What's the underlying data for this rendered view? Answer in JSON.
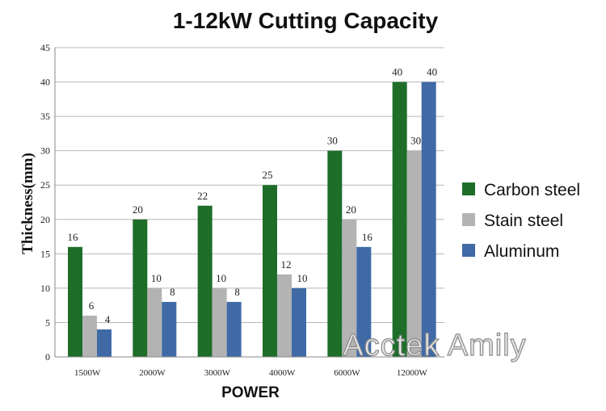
{
  "chart_data": {
    "type": "bar",
    "title": "1-12kW Cutting Capacity",
    "xlabel": "POWER",
    "ylabel": "Thickness(mm)",
    "categories": [
      "1500W",
      "2000W",
      "3000W",
      "4000W",
      "6000W",
      "12000W"
    ],
    "series": [
      {
        "name": "Carbon steel",
        "color": "#1e6e2a",
        "values": [
          16,
          20,
          22,
          25,
          30,
          40
        ]
      },
      {
        "name": "Stain steel",
        "color": "#b3b3b3",
        "values": [
          6,
          10,
          10,
          12,
          20,
          30
        ]
      },
      {
        "name": "Aluminum",
        "color": "#3f6aa6",
        "values": [
          4,
          8,
          8,
          10,
          16,
          40
        ]
      }
    ],
    "ylim": [
      0,
      45
    ],
    "yticks": [
      0,
      5,
      10,
      15,
      20,
      25,
      30,
      35,
      40,
      45
    ],
    "grid": true,
    "legend_position": "right",
    "data_labels": true
  },
  "watermark": "Acctek Amily"
}
